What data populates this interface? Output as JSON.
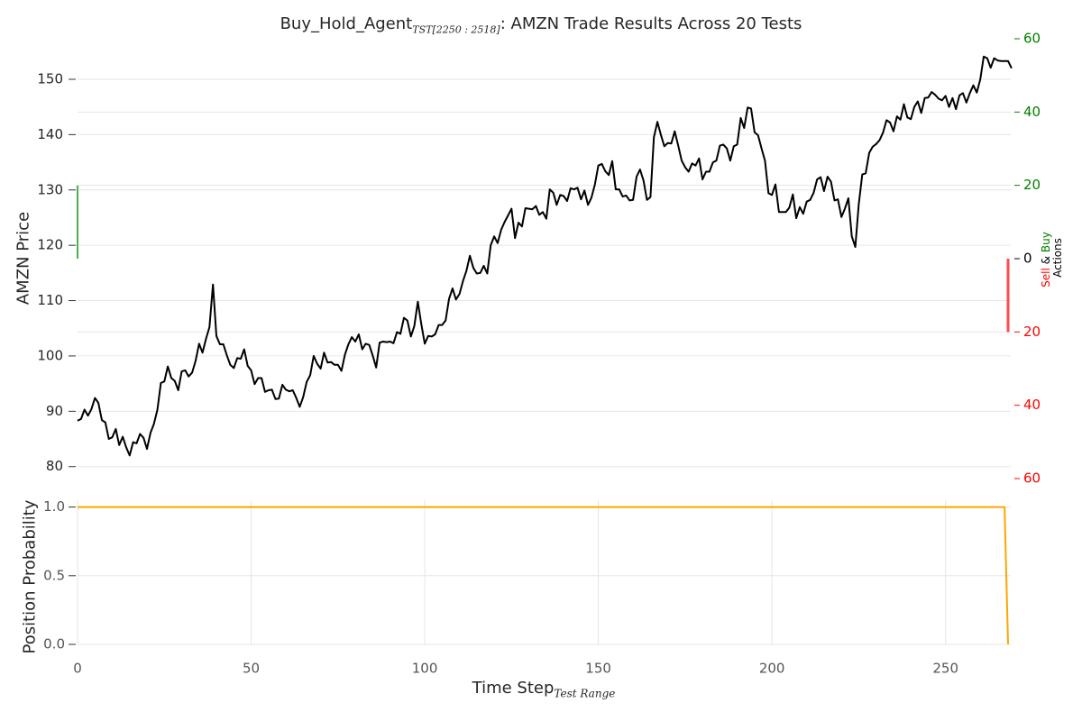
{
  "header": {
    "title_prefix": "Buy_Hold_Agent",
    "title_sub": "TST[2250 : 2518]",
    "title_suffix": ": AMZN Trade Results Across 20 Tests"
  },
  "chart_data": [
    {
      "type": "line",
      "name": "price-panel",
      "ylabel": "AMZN Price",
      "ylim": [
        78,
        157
      ],
      "yticks": [
        80,
        90,
        100,
        110,
        120,
        130,
        140,
        150
      ],
      "xlim": [
        0,
        268
      ],
      "grid": true,
      "series": [
        {
          "name": "AMZN",
          "color": "#000000",
          "values": [
            88.3,
            88.6,
            90.3,
            89.2,
            90.4,
            92.4,
            91.5,
            88.4,
            88.0,
            85.0,
            85.3,
            86.8,
            83.9,
            85.4,
            83.5,
            82.0,
            84.4,
            84.2,
            85.9,
            85.2,
            83.2,
            86.1,
            87.7,
            90.3,
            95.1,
            95.4,
            98.1,
            96.0,
            95.5,
            93.8,
            97.2,
            97.4,
            96.3,
            97.0,
            99.1,
            102.2,
            100.6,
            103.1,
            105.2,
            112.9,
            103.6,
            102.1,
            102.1,
            100.1,
            98.4,
            97.8,
            99.6,
            99.5,
            101.2,
            98.2,
            97.4,
            94.9,
            96.0,
            96.0,
            93.5,
            93.8,
            93.9,
            92.2,
            92.3,
            94.8,
            93.9,
            93.6,
            93.8,
            92.4,
            90.8,
            92.6,
            95.3,
            96.5,
            100.0,
            98.6,
            97.7,
            100.6,
            98.8,
            98.9,
            98.4,
            98.4,
            97.3,
            100.2,
            102.1,
            103.4,
            102.6,
            103.9,
            101.2,
            102.2,
            102.0,
            100.1,
            97.9,
            102.4,
            102.6,
            102.5,
            102.6,
            102.3,
            104.3,
            104.0,
            106.9,
            106.4,
            103.5,
            105.4,
            109.8,
            105.8,
            102.2,
            103.6,
            103.5,
            103.9,
            105.6,
            105.6,
            106.4,
            110.3,
            112.2,
            110.2,
            111.2,
            113.5,
            115.4,
            118.1,
            115.9,
            114.9,
            115.0,
            116.3,
            114.9,
            120.0,
            121.6,
            120.4,
            122.8,
            124.2,
            125.4,
            126.6,
            121.3,
            124.1,
            123.4,
            126.7,
            126.6,
            126.5,
            127.1,
            125.5,
            126.0,
            124.8,
            130.1,
            129.5,
            127.3,
            129.1,
            128.9,
            128.0,
            130.3,
            130.1,
            130.4,
            128.3,
            129.9,
            127.3,
            128.6,
            131.0,
            134.4,
            134.7,
            133.4,
            132.7,
            135.2,
            130.1,
            130.1,
            128.8,
            129.0,
            128.1,
            128.2,
            132.4,
            133.7,
            131.7,
            128.2,
            128.7,
            139.5,
            142.3,
            140.0,
            137.9,
            138.5,
            138.4,
            140.6,
            138.0,
            135.3,
            134.1,
            133.3,
            134.8,
            134.4,
            135.7,
            131.9,
            133.3,
            133.3,
            135.0,
            135.3,
            138.0,
            138.2,
            137.5,
            135.3,
            137.9,
            138.2,
            143.0,
            141.2,
            144.9,
            144.7,
            140.4,
            139.9,
            137.5,
            135.3,
            129.4,
            129.1,
            131.0,
            126.0,
            126.0,
            126.0,
            126.8,
            129.2,
            124.9,
            126.9,
            125.7,
            127.9,
            128.2,
            129.5,
            131.9,
            132.3,
            129.8,
            132.4,
            131.5,
            128.1,
            128.3,
            125.1,
            126.6,
            128.5,
            121.6,
            119.7,
            127.4,
            132.8,
            133.0,
            136.7,
            137.8,
            138.3,
            139.0,
            140.4,
            142.6,
            142.2,
            140.6,
            143.3,
            142.7,
            145.5,
            143.1,
            142.8,
            145.0,
            146.0,
            143.9,
            146.6,
            146.7,
            147.7,
            147.2,
            146.5,
            146.2,
            147.0,
            145.0,
            146.6,
            144.6,
            147.1,
            147.5,
            145.8,
            147.5,
            148.9,
            147.6,
            150.0,
            154.1,
            153.8,
            152.1,
            153.8,
            153.4,
            153.3,
            153.3,
            153.3,
            152.0
          ]
        }
      ]
    },
    {
      "type": "bar",
      "name": "actions-panel",
      "ylabel_parts": [
        {
          "text": "Sell",
          "color": "#ff0000"
        },
        {
          "text": "&",
          "color": "#000000"
        },
        {
          "text": "Buy",
          "color": "#008000"
        }
      ],
      "ylabel_suffix": "Actions",
      "ylim": [
        -60,
        60
      ],
      "yticks_buy": [
        0,
        20,
        40,
        60
      ],
      "yticks_sell": [
        20,
        40,
        60
      ],
      "series": [
        {
          "name": "Buy",
          "color": "#4caf50",
          "points": [
            {
              "x": 0,
              "y": 20
            }
          ]
        },
        {
          "name": "Sell",
          "color": "#ff4d4d",
          "points": [
            {
              "x": 268,
              "y": 20
            }
          ]
        }
      ]
    },
    {
      "type": "line",
      "name": "position-panel",
      "ylabel": "Position Probability",
      "xlabel_main": "Time Step",
      "xlabel_sub": "Test Range",
      "ylim": [
        0,
        1.05
      ],
      "yticks": [
        "0.0",
        "0.5",
        "1.0"
      ],
      "xticks": [
        0,
        50,
        100,
        150,
        200,
        250
      ],
      "grid": true,
      "series": [
        {
          "name": "Position",
          "color": "#ffa500",
          "x": [
            0,
            267,
            268
          ],
          "values": [
            1.0,
            1.0,
            0.0
          ]
        }
      ]
    }
  ]
}
